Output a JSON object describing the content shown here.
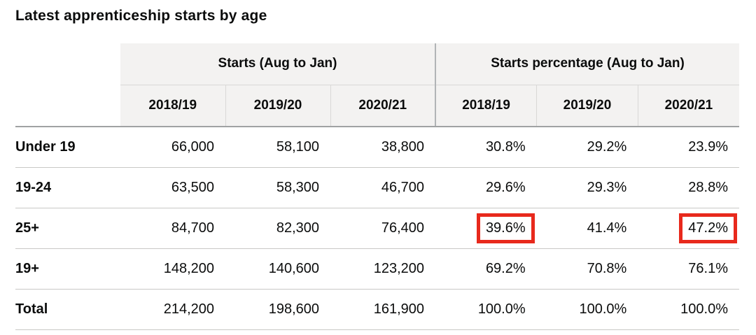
{
  "page": {
    "title": "Latest apprenticeship starts by age"
  },
  "chart_data": {
    "type": "table",
    "title": "Latest apprenticeship starts by age",
    "column_groups": [
      {
        "label": "Starts (Aug to Jan)",
        "span": 3
      },
      {
        "label": "Starts percentage (Aug to Jan)",
        "span": 3
      }
    ],
    "years": [
      "2018/19",
      "2019/20",
      "2020/21"
    ],
    "rows": [
      {
        "label": "Under 19",
        "starts": [
          "66,000",
          "58,100",
          "38,800"
        ],
        "percentages": [
          "30.8%",
          "29.2%",
          "23.9%"
        ]
      },
      {
        "label": "19-24",
        "starts": [
          "63,500",
          "58,300",
          "46,700"
        ],
        "percentages": [
          "29.6%",
          "29.3%",
          "28.8%"
        ]
      },
      {
        "label": "25+",
        "starts": [
          "84,700",
          "82,300",
          "76,400"
        ],
        "percentages": [
          "39.6%",
          "41.4%",
          "47.2%"
        ]
      },
      {
        "label": "19+",
        "starts": [
          "148,200",
          "140,600",
          "123,200"
        ],
        "percentages": [
          "69.2%",
          "70.8%",
          "76.1%"
        ]
      },
      {
        "label": "Total",
        "starts": [
          "214,200",
          "198,600",
          "161,900"
        ],
        "percentages": [
          "100.0%",
          "100.0%",
          "100.0%"
        ]
      }
    ],
    "highlights": [
      {
        "row_label": "25+",
        "group": "Starts percentage (Aug to Jan)",
        "year": "2018/19",
        "value": "39.6%"
      },
      {
        "row_label": "25+",
        "group": "Starts percentage (Aug to Jan)",
        "year": "2020/21",
        "value": "47.2%"
      }
    ],
    "layout": {
      "grid": "off",
      "header_rows": 2,
      "value_alignment": "right"
    }
  },
  "colors": {
    "header_background": "#f3f2f1",
    "group_divider": "#b1b4b6",
    "year_divider": "#d9d8d6",
    "header_bottom_border": "#a0a2a3",
    "row_border": "#c9c8c6",
    "highlight_border": "#e8291c",
    "text_color": "#0b0c0c"
  }
}
